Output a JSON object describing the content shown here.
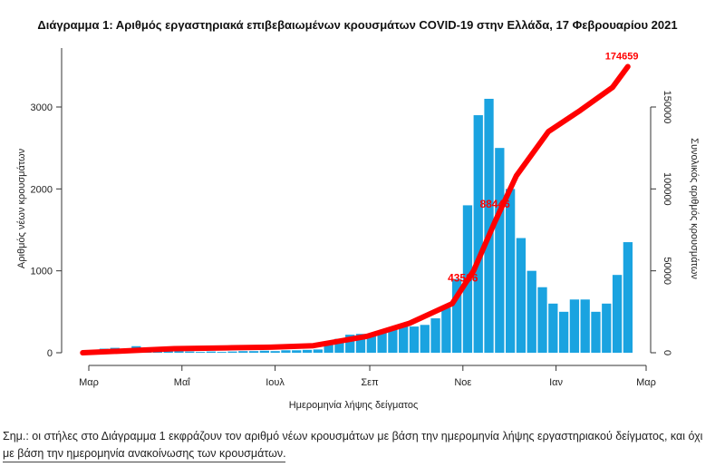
{
  "chart_data": {
    "type": "bar",
    "title": "Διάγραμμα 1: Αριθμός εργαστηριακά επιβεβαιωμένων κρουσμάτων COVID-19 στην Ελλάδα, 17 Φεβρουαρίου 2021",
    "xlabel": "Ημερομηνία λήψης δείγματος",
    "ylabel": "Αριθμός νέων κρουσμάτων",
    "y2label": "Συνολικός αριθμός κρουσμάτων",
    "ylim": [
      0,
      3700
    ],
    "y2lim": [
      0,
      185000
    ],
    "yticks": [
      "0",
      "1000",
      "2000",
      "3000"
    ],
    "y2ticks": [
      "0",
      "50000",
      "100000",
      "150000"
    ],
    "xticks": [
      {
        "label": "Μαρ",
        "date": "2020-03-01"
      },
      {
        "label": "Μαΐ",
        "date": "2020-05-01"
      },
      {
        "label": "Ιουλ",
        "date": "2020-07-01"
      },
      {
        "label": "Σεπ",
        "date": "2020-09-01"
      },
      {
        "label": "Νοε",
        "date": "2020-11-01"
      },
      {
        "label": "Ιαν",
        "date": "2021-01-01"
      },
      {
        "label": "Μαρ",
        "date": "2021-03-01"
      }
    ],
    "grid": false,
    "colors": {
      "bars": "#1aa3e0",
      "cumulative": "#ff0000"
    },
    "series": [
      {
        "kind": "bar",
        "dates": [
          "2020-03-01",
          "2020-03-08",
          "2020-03-15",
          "2020-03-22",
          "2020-03-29",
          "2020-04-05",
          "2020-04-12",
          "2020-04-19",
          "2020-04-26",
          "2020-05-03",
          "2020-05-10",
          "2020-05-17",
          "2020-05-24",
          "2020-05-31",
          "2020-06-07",
          "2020-06-14",
          "2020-06-21",
          "2020-06-28",
          "2020-07-05",
          "2020-07-12",
          "2020-07-19",
          "2020-07-26",
          "2020-08-02",
          "2020-08-09",
          "2020-08-16",
          "2020-08-23",
          "2020-08-30",
          "2020-09-06",
          "2020-09-13",
          "2020-09-20",
          "2020-09-27",
          "2020-10-04",
          "2020-10-11",
          "2020-10-18",
          "2020-10-25",
          "2020-11-01",
          "2020-11-08",
          "2020-11-15",
          "2020-11-22",
          "2020-11-29",
          "2020-12-06",
          "2020-12-13",
          "2020-12-20",
          "2020-12-27",
          "2021-01-03",
          "2021-01-10",
          "2021-01-17",
          "2021-01-24",
          "2021-01-31",
          "2021-02-07",
          "2021-02-14"
        ],
        "values": [
          15,
          50,
          60,
          50,
          80,
          60,
          40,
          30,
          20,
          15,
          10,
          15,
          10,
          15,
          20,
          20,
          25,
          20,
          30,
          30,
          35,
          40,
          100,
          170,
          220,
          230,
          200,
          270,
          300,
          330,
          320,
          340,
          420,
          550,
          900,
          1800,
          2900,
          3100,
          2500,
          2000,
          1400,
          1000,
          800,
          600,
          500,
          650,
          650,
          500,
          600,
          950,
          1350
        ]
      },
      {
        "kind": "line",
        "axis": "right",
        "dates": [
          "2020-02-26",
          "2020-03-29",
          "2020-04-26",
          "2020-05-31",
          "2020-06-28",
          "2020-07-26",
          "2020-08-30",
          "2020-09-27",
          "2020-10-25",
          "2020-11-08",
          "2020-11-22",
          "2020-12-06",
          "2020-12-27",
          "2021-01-17",
          "2021-02-07",
          "2021-02-17"
        ],
        "values": [
          0,
          1300,
          2500,
          3000,
          3400,
          4300,
          10000,
          18000,
          30000,
          50000,
          80000,
          108000,
          135000,
          148000,
          162000,
          174659
        ]
      }
    ],
    "annotations": [
      {
        "text": "174659",
        "date": "2021-02-17",
        "value": 174659
      },
      {
        "text": "88446",
        "date": "2020-11-18",
        "value": 88446
      },
      {
        "text": "43586",
        "date": "2020-10-28",
        "value": 43586
      }
    ]
  },
  "note": {
    "line1": "Σημ.: οι στήλες στο Διάγραμμα 1 εκφράζουν τον αριθμό νέων κρουσμάτων με βάση την ημερομηνία λήψης εργαστηριακού δείγματος, και όχι",
    "line2": "με βάση την ημερομηνία ανακοίνωσης των κρουσμάτων."
  }
}
